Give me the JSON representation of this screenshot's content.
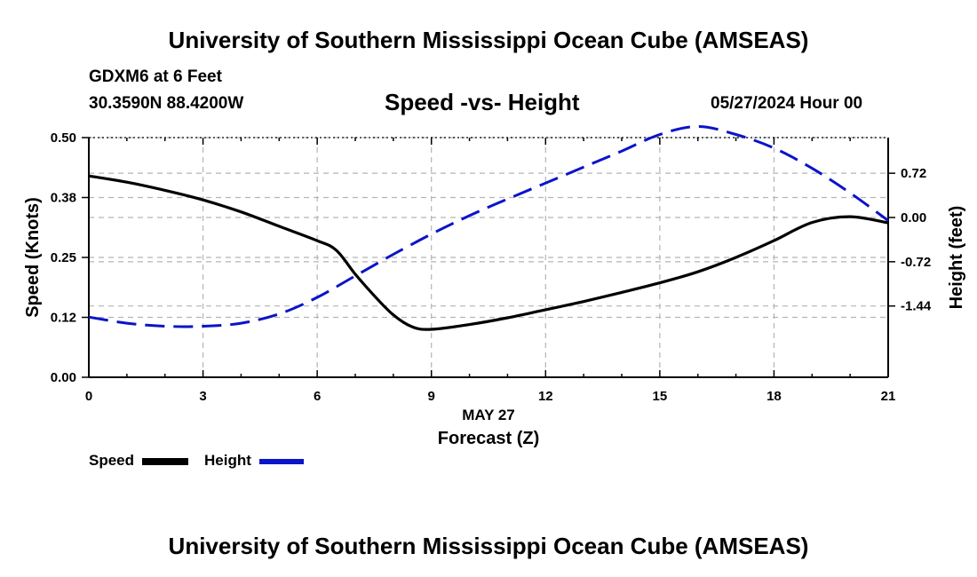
{
  "header": {
    "title": "University of Southern Mississippi Ocean Cube (AMSEAS)",
    "station": "GDXM6 at 6 Feet",
    "coords": "30.3590N  88.4200W",
    "subtitle": "Speed -vs- Height",
    "datetime": "05/27/2024 Hour 00"
  },
  "footer": {
    "title": "University of Southern Mississippi Ocean Cube (AMSEAS)"
  },
  "legend": {
    "speed_label": "Speed",
    "height_label": "Height"
  },
  "colors": {
    "speed": "#000000",
    "height": "#0a14c8",
    "grid": "#b4b4b4"
  },
  "chart_data": {
    "type": "line",
    "title": "Speed -vs- Height",
    "xlabel": "Forecast (Z)",
    "xdate_label": "MAY 27",
    "ylabel": "Speed (Knots)",
    "y2label": "Height (feet)",
    "xlim": [
      0,
      21
    ],
    "xticks": [
      0,
      3,
      6,
      9,
      12,
      15,
      18,
      21
    ],
    "ylim": [
      0,
      0.5
    ],
    "yticks": [
      0.0,
      0.125,
      0.25,
      0.375,
      0.5
    ],
    "ytick_labels": [
      "0.00",
      "0.12",
      "0.25",
      "0.38",
      "0.50"
    ],
    "y2lim": [
      -2.6,
      1.3
    ],
    "y2ticks": [
      -1.44,
      -0.72,
      0.0,
      0.72
    ],
    "y2tick_labels": [
      "-1.44",
      "-0.72",
      "0.00",
      "0.72"
    ],
    "grid": true,
    "series": [
      {
        "name": "Speed",
        "axis": "left",
        "style": "solid",
        "x": [
          0,
          1,
          2,
          3,
          4,
          5,
          6,
          6.5,
          7,
          7.5,
          8,
          8.5,
          9,
          10,
          11,
          12,
          13,
          14,
          15,
          16,
          17,
          18,
          19,
          20,
          21
        ],
        "values": [
          0.42,
          0.407,
          0.39,
          0.37,
          0.345,
          0.315,
          0.285,
          0.265,
          0.215,
          0.17,
          0.13,
          0.105,
          0.1,
          0.11,
          0.124,
          0.141,
          0.158,
          0.177,
          0.197,
          0.22,
          0.25,
          0.285,
          0.323,
          0.335,
          0.322
        ]
      },
      {
        "name": "Height",
        "axis": "right",
        "style": "dashed",
        "x": [
          0,
          1,
          2,
          3,
          4,
          5,
          6,
          7,
          8,
          9,
          10,
          11,
          12,
          13,
          14,
          15,
          16,
          17,
          18,
          19,
          20,
          21
        ],
        "values": [
          -1.62,
          -1.72,
          -1.77,
          -1.77,
          -1.72,
          -1.57,
          -1.3,
          -0.95,
          -0.6,
          -0.27,
          0.03,
          0.3,
          0.56,
          0.82,
          1.08,
          1.35,
          1.48,
          1.35,
          1.13,
          0.8,
          0.4,
          -0.05
        ]
      }
    ]
  }
}
